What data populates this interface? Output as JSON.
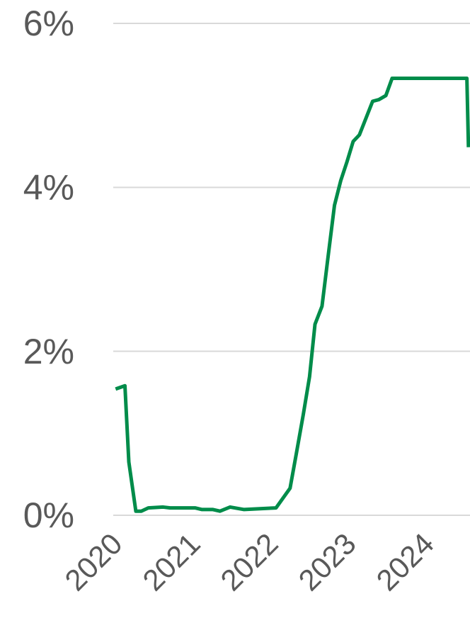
{
  "chart_data": {
    "type": "line",
    "x": [
      2020.0,
      2020.12,
      2020.17,
      2020.26,
      2020.33,
      2020.42,
      2020.61,
      2020.7,
      2021.02,
      2021.11,
      2021.25,
      2021.34,
      2021.47,
      2021.65,
      2022.06,
      2022.15,
      2022.24,
      2022.32,
      2022.41,
      2022.49,
      2022.56,
      2022.65,
      2022.73,
      2022.81,
      2022.89,
      2022.97,
      2023.05,
      2023.13,
      2023.3,
      2023.38,
      2023.47,
      2023.55,
      2024.51,
      2024.53
    ],
    "series": [
      {
        "color": "#008c4a",
        "values": [
          1.54,
          1.58,
          0.65,
          0.05,
          0.05,
          0.09,
          0.1,
          0.09,
          0.09,
          0.07,
          0.07,
          0.05,
          0.1,
          0.07,
          0.09,
          0.21,
          0.33,
          0.75,
          1.23,
          1.69,
          2.33,
          2.55,
          3.17,
          3.78,
          4.08,
          4.31,
          4.56,
          4.64,
          5.05,
          5.07,
          5.12,
          5.33,
          5.33,
          4.49
        ]
      }
    ],
    "xlim": [
      2019.97,
      2024.55
    ],
    "xticks": [
      2020,
      2021,
      2022,
      2023,
      2024
    ],
    "ylim": [
      0,
      6
    ],
    "yticks": [
      {
        "value": 0,
        "label": "0%"
      },
      {
        "value": 2,
        "label": "2%"
      },
      {
        "value": 4,
        "label": "4%"
      },
      {
        "value": 6,
        "label": "6%"
      }
    ],
    "grid": true
  }
}
